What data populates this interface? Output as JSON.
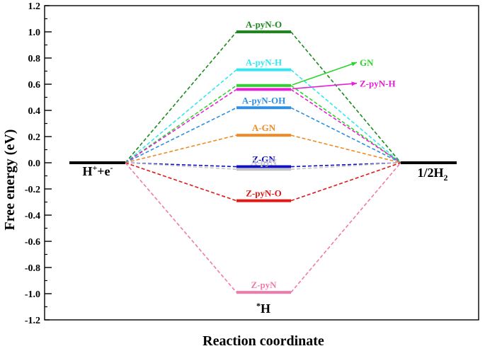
{
  "chart_data": {
    "type": "line",
    "xlabel": "Reaction coordinate",
    "ylabel": "Free energy (eV)",
    "ylim": [
      -1.2,
      1.2
    ],
    "yticks": [
      "1.2",
      "1.0",
      "0.8",
      "0.6",
      "0.4",
      "0.2",
      "0.0",
      "-0.2",
      "-0.4",
      "-0.6",
      "-0.8",
      "-1.0",
      "-1.2"
    ],
    "yticks_values": [
      1.2,
      1.0,
      0.8,
      0.6,
      0.4,
      0.2,
      0.0,
      -0.2,
      -0.4,
      -0.6,
      -0.8,
      -1.0,
      -1.2
    ],
    "start_label": "H⁺+e⁻",
    "end_label": "1/2H₂",
    "intermediate_label": "*H",
    "start_value": 0.0,
    "end_value": 0.0,
    "series": [
      {
        "name": "A-pyN-O",
        "value": 1.0,
        "color": "#1a8a1a"
      },
      {
        "name": "A-pyN-H",
        "value": 0.71,
        "color": "#33e6f0"
      },
      {
        "name": "GN",
        "value": 0.59,
        "color": "#2ed42e"
      },
      {
        "name": "Z-pyN-H",
        "value": 0.56,
        "color": "#e81fd6"
      },
      {
        "name": "A-pyN-OH",
        "value": 0.42,
        "color": "#2f8fe0"
      },
      {
        "name": "A-GN",
        "value": 0.21,
        "color": "#f08a24"
      },
      {
        "name": "Z-GN",
        "value": -0.03,
        "color": "#1010c8"
      },
      {
        "name": "A-pyN",
        "value": -0.05,
        "color": "#c4c4c4"
      },
      {
        "name": "Z-pyN-O",
        "value": -0.29,
        "color": "#e01818"
      },
      {
        "name": "Z-pyN",
        "value": -0.99,
        "color": "#f07aac"
      }
    ]
  }
}
